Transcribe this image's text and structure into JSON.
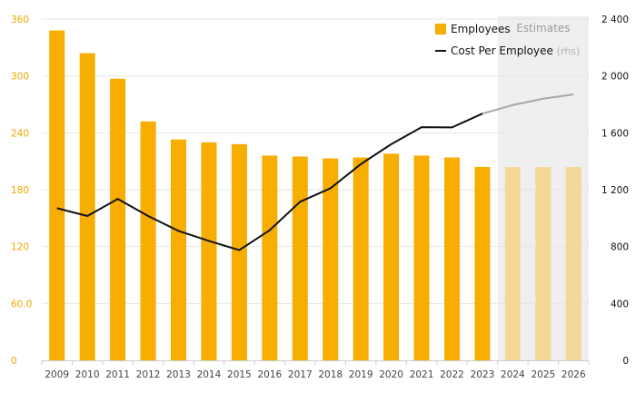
{
  "chart_data": {
    "type": "bar",
    "categories": [
      "2009",
      "2010",
      "2011",
      "2012",
      "2013",
      "2014",
      "2015",
      "2016",
      "2017",
      "2018",
      "2019",
      "2020",
      "2021",
      "2022",
      "2023",
      "2024",
      "2025",
      "2026"
    ],
    "series": [
      {
        "name": "Employees",
        "axis": "left",
        "color": "#f7ae00",
        "estimate_color": "#f3d89a",
        "values": [
          348,
          324,
          297,
          252,
          233,
          230,
          228,
          216,
          215,
          213,
          214,
          218,
          216,
          214,
          204,
          204,
          204,
          204
        ]
      },
      {
        "name": "Cost Per Employee",
        "axis": "right",
        "type": "line",
        "color": "#111111",
        "estimate_color": "#a6a6a6",
        "values": [
          1070,
          1015,
          1135,
          1015,
          910,
          840,
          775,
          915,
          1115,
          1210,
          1380,
          1520,
          1640,
          1638,
          1735,
          1795,
          1840,
          1870
        ]
      }
    ],
    "estimate_start": "2024",
    "estimate_label": "Estimates",
    "legend": [
      {
        "label": "Employees",
        "suffix": ""
      },
      {
        "label": "Cost Per Employee",
        "suffix": "(rhs)"
      }
    ],
    "legend_position": "top-right",
    "ylim": [
      0,
      360
    ],
    "y_ticks": [
      "0",
      "60.0",
      "120",
      "180",
      "240",
      "300",
      "360"
    ],
    "y2lim": [
      0,
      2400
    ],
    "y2_ticks": [
      "0",
      "400",
      "800",
      "1 200",
      "1 600",
      "2 000",
      "2 400"
    ],
    "grid": true,
    "title": "",
    "xlabel": "",
    "ylabel": ""
  }
}
